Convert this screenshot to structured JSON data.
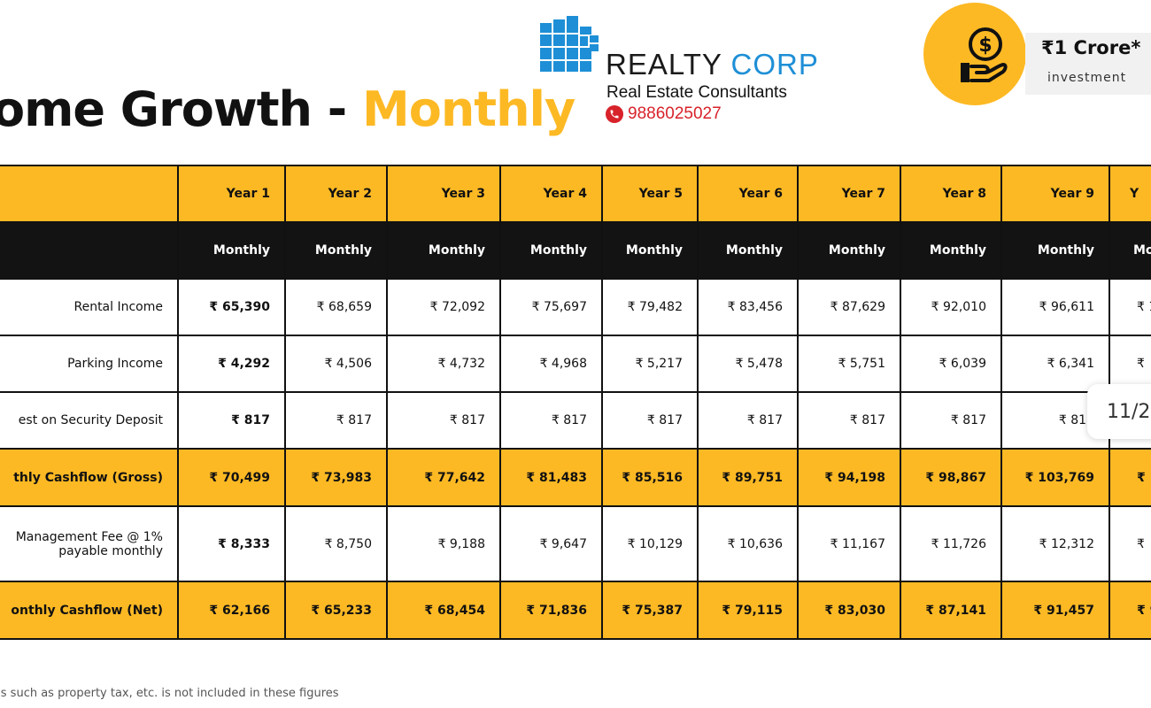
{
  "title": {
    "part1": "come Growth - ",
    "part2": "Monthly"
  },
  "brand": {
    "name_part1": "REALTY",
    "name_part2": "CORP",
    "tagline": "Real Estate Consultants",
    "phone": "9886025027",
    "icon": "building-grid-icon",
    "brand_blue": "#1E8FD6",
    "phone_red": "#D8222A"
  },
  "badge": {
    "amount": "₹1 Crore*",
    "subtitle": "investment",
    "icon": "money-hand-icon"
  },
  "accent_color": "#FDB924",
  "table": {
    "years": [
      "Year 1",
      "Year 2",
      "Year 3",
      "Year 4",
      "Year 5",
      "Year 6",
      "Year 7",
      "Year 8",
      "Year 9",
      "Y"
    ],
    "subheader": [
      "Monthly",
      "Monthly",
      "Monthly",
      "Monthly",
      "Monthly",
      "Monthly",
      "Monthly",
      "Monthly",
      "Monthly",
      "Mo"
    ],
    "rows": [
      {
        "label": "Rental Income",
        "values": [
          "₹ 65,390",
          "₹ 68,659",
          "₹ 72,092",
          "₹ 75,697",
          "₹ 79,482",
          "₹ 83,456",
          "₹ 87,629",
          "₹ 92,010",
          "₹ 96,611",
          "₹ 1"
        ]
      },
      {
        "label": "Parking Income",
        "values": [
          "₹ 4,292",
          "₹ 4,506",
          "₹ 4,732",
          "₹ 4,968",
          "₹ 5,217",
          "₹ 5,478",
          "₹ 5,751",
          "₹ 6,039",
          "₹ 6,341",
          "₹"
        ]
      },
      {
        "label": "est on Security Deposit",
        "values": [
          "₹ 817",
          "₹ 817",
          "₹ 817",
          "₹ 817",
          "₹ 817",
          "₹ 817",
          "₹ 817",
          "₹ 817",
          "₹ 817",
          ""
        ]
      },
      {
        "label": "thly Cashflow (Gross)",
        "values": [
          "₹ 70,499",
          "₹ 73,983",
          "₹ 77,642",
          "₹ 81,483",
          "₹ 85,516",
          "₹ 89,751",
          "₹ 94,198",
          "₹ 98,867",
          "₹ 103,769",
          "₹ 1"
        ]
      },
      {
        "label_line1": "Management Fee @ 1%",
        "label_line2": "payable monthly",
        "values": [
          "₹ 8,333",
          "₹ 8,750",
          "₹ 9,188",
          "₹ 9,647",
          "₹ 10,129",
          "₹ 10,636",
          "₹ 11,167",
          "₹ 11,726",
          "₹ 12,312",
          "₹"
        ]
      },
      {
        "label": "onthly Cashflow (Net)",
        "values": [
          "₹ 62,166",
          "₹ 65,233",
          "₹ 68,454",
          "₹ 71,836",
          "₹ 75,387",
          "₹ 79,115",
          "₹ 83,030",
          "₹ 87,141",
          "₹ 91,457",
          "₹ 9"
        ]
      }
    ]
  },
  "pager": "11/2",
  "footnote": "ses such as property tax, etc. is not included in these figures"
}
